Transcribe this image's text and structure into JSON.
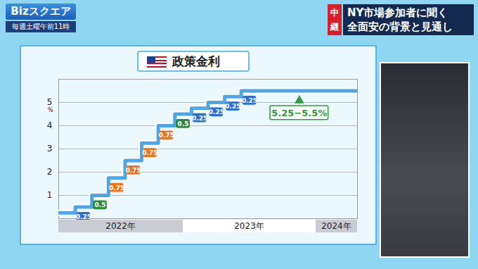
{
  "header": {
    "logo": "Bizスクエア",
    "schedule": "毎週土曜午前11時",
    "badge": "中継",
    "headline": [
      "NY市場参加者に聞く",
      "全面安の背景と見通し"
    ]
  },
  "chart_data": {
    "type": "line",
    "title": "政策金利",
    "ylabel": "%",
    "x": [
      0,
      1,
      2,
      3,
      4,
      5,
      6,
      7,
      8,
      9,
      10,
      11
    ],
    "values": [
      0.25,
      0.5,
      1,
      1.75,
      2.5,
      3.25,
      4,
      4.5,
      4.75,
      5,
      5.25,
      5.5
    ],
    "step_labels": [
      0.25,
      0.5,
      0.75,
      0.75,
      0.75,
      0.75,
      0.5,
      0.25,
      0.25,
      0.25,
      0.25
    ],
    "step_label_colors": [
      "#2f6fd0",
      "#2e8b3e",
      "#e87722",
      "#e87722",
      "#e87722",
      "#e87722",
      "#2e8b3e",
      "#2f6fd0",
      "#2f6fd0",
      "#2f6fd0",
      "#2f6fd0"
    ],
    "annotation": "5.25−5.5%",
    "x_bands": [
      {
        "label": "2022年",
        "from": 0,
        "to": 7.5
      },
      {
        "label": "2023年",
        "from": 7.5,
        "to": 15.5
      },
      {
        "label": "2024年",
        "from": 15.5,
        "to": 18
      }
    ],
    "xlim": [
      0,
      18
    ],
    "ylim": [
      0,
      6
    ],
    "yticks": [
      1,
      2,
      3,
      4,
      5
    ],
    "grid": true,
    "tick_labels": "y",
    "color": "#4da6e8",
    "line_style": "step"
  }
}
